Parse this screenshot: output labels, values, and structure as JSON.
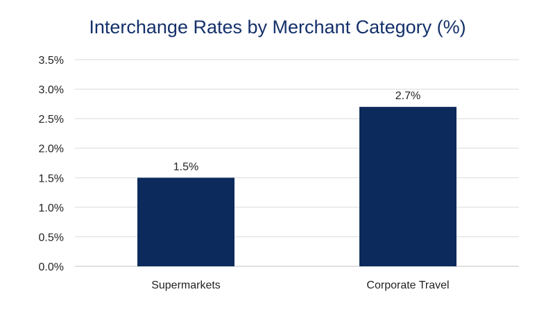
{
  "chart_data": {
    "type": "bar",
    "title": "Interchange Rates by Merchant Category (%)",
    "categories": [
      "Supermarkets",
      "Corporate Travel"
    ],
    "values": [
      1.5,
      2.7
    ],
    "data_labels": [
      "1.5%",
      "2.7%"
    ],
    "xlabel": "",
    "ylabel": "",
    "ylim": [
      0,
      3.5
    ],
    "yticks": [
      0,
      0.5,
      1.0,
      1.5,
      2.0,
      2.5,
      3.0,
      3.5
    ],
    "ytick_labels": [
      "0.0%",
      "0.5%",
      "1.0%",
      "1.5%",
      "2.0%",
      "2.5%",
      "3.0%",
      "3.5%"
    ],
    "grid": true,
    "legend": "none",
    "bar_color": "#0c2a5c",
    "title_color": "#14306a"
  }
}
